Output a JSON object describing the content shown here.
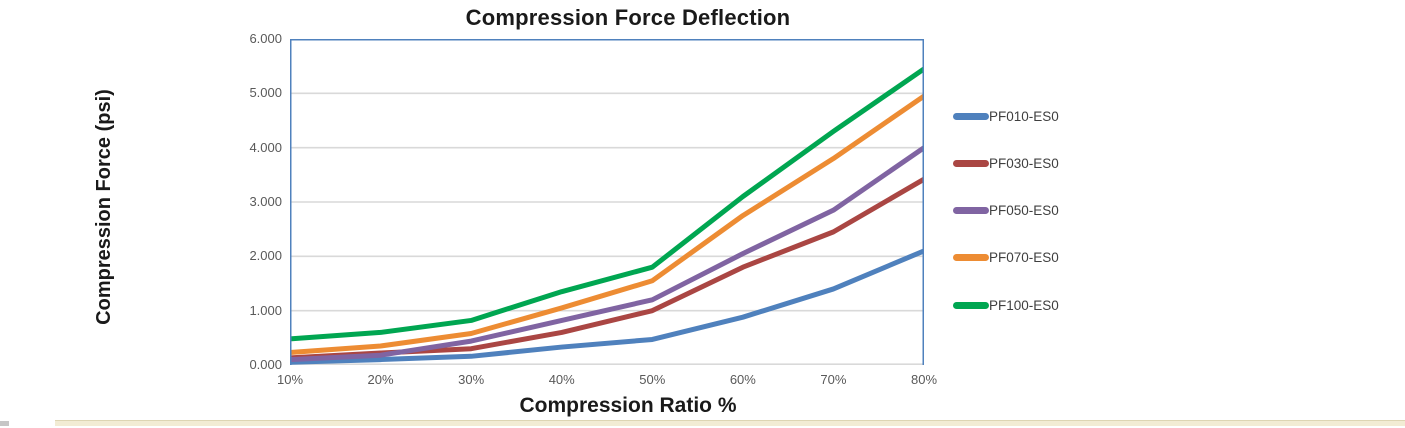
{
  "chart_data": {
    "type": "line",
    "title": "Compression Force Deflection",
    "xlabel": "Compression Ratio %",
    "ylabel": "Compression Force  (psi)",
    "categories": [
      "10%",
      "20%",
      "30%",
      "40%",
      "50%",
      "60%",
      "70%",
      "80%"
    ],
    "series": [
      {
        "name": "PF010-ES0",
        "color": "#4F81BD",
        "values": [
          0.05,
          0.1,
          0.16,
          0.33,
          0.47,
          0.88,
          1.4,
          2.1
        ]
      },
      {
        "name": "PF030-ES0",
        "color": "#AA4643",
        "values": [
          0.13,
          0.22,
          0.3,
          0.6,
          1.0,
          1.8,
          2.45,
          3.42
        ]
      },
      {
        "name": "PF050-ES0",
        "color": "#8064A2",
        "values": [
          0.1,
          0.18,
          0.44,
          0.82,
          1.2,
          2.05,
          2.85,
          4.0
        ]
      },
      {
        "name": "PF070-ES0",
        "color": "#ED8C33",
        "values": [
          0.23,
          0.35,
          0.58,
          1.05,
          1.55,
          2.75,
          3.8,
          4.95
        ]
      },
      {
        "name": "PF100-ES0",
        "color": "#00A651",
        "values": [
          0.48,
          0.6,
          0.82,
          1.35,
          1.8,
          3.1,
          4.3,
          5.45
        ]
      }
    ],
    "ylim": [
      0,
      6
    ],
    "y_ticks": [
      "0.000",
      "1.000",
      "2.000",
      "3.000",
      "4.000",
      "5.000",
      "6.000"
    ],
    "grid": "horizontal-only",
    "legend_position": "right"
  },
  "styles": {
    "plot_border_color": "#4F81BD",
    "gridline_color": "#D9D9D9",
    "axis_bottom_color": "#D9D9D9",
    "tick_label_color": "#595959",
    "title_color": "#1A1A1A",
    "legend_text_color": "#3F3F3F",
    "divider_color": "#F2ECD4"
  }
}
